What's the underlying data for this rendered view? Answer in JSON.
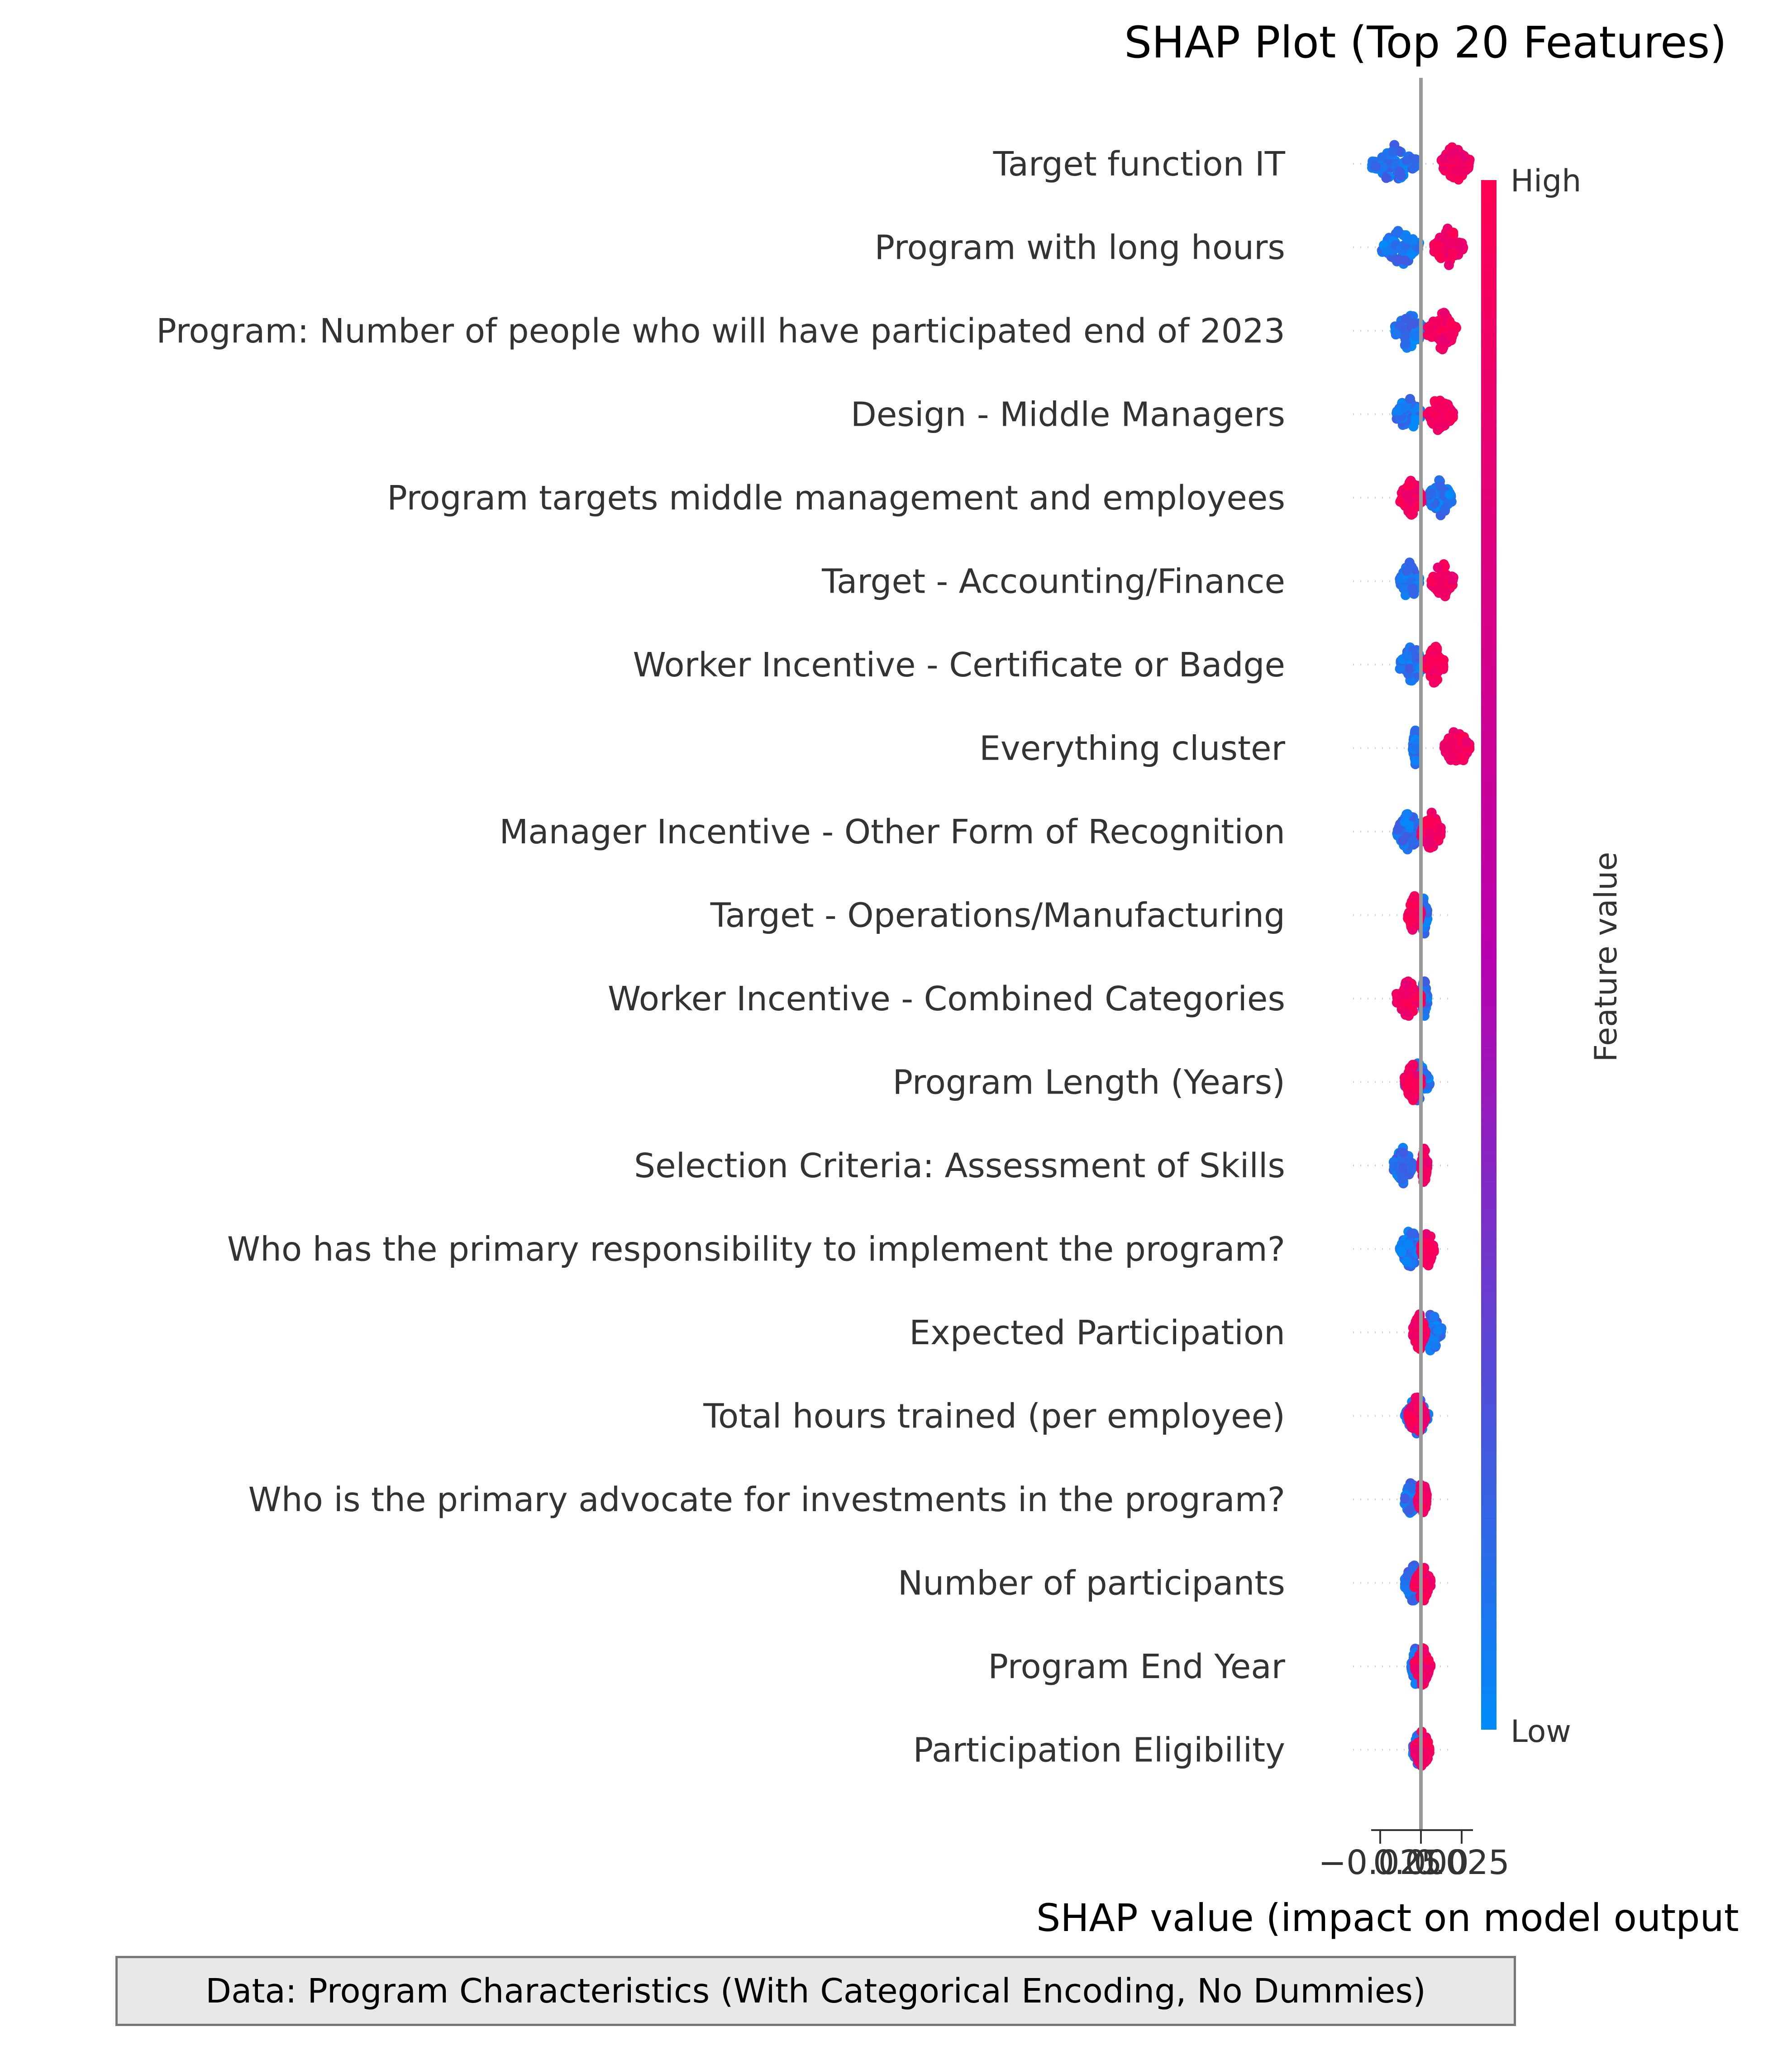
{
  "chart_data": {
    "type": "scatter",
    "subtype": "shap-beeswarm",
    "title": "SHAP Plot (Top 20 Features)",
    "xlabel": "SHAP value (impact on model output",
    "xlim": [
      -0.04,
      0.04
    ],
    "x_ticks": [
      "−0.025",
      "0.000",
      "0.025"
    ],
    "features": [
      {
        "name": "Target function IT",
        "low_range": [
          -0.03,
          -0.002
        ],
        "high_range": [
          0.012,
          0.03
        ]
      },
      {
        "name": "Program with long hours",
        "low_range": [
          -0.024,
          -0.001
        ],
        "high_range": [
          0.008,
          0.026
        ]
      },
      {
        "name": "Program: Number of people who will have participated end of 2023",
        "low_range": [
          -0.016,
          0.002
        ],
        "high_range": [
          0.004,
          0.022
        ]
      },
      {
        "name": "Design - Middle Managers",
        "low_range": [
          -0.015,
          0.0
        ],
        "high_range": [
          0.004,
          0.02
        ]
      },
      {
        "name": "Program targets middle management and employees",
        "low_range": [
          0.004,
          0.019
        ],
        "high_range": [
          -0.013,
          0.001
        ]
      },
      {
        "name": "Target - Accounting/Finance",
        "low_range": [
          -0.013,
          -0.001
        ],
        "high_range": [
          0.006,
          0.02
        ]
      },
      {
        "name": "Worker Incentive - Certificate or Badge",
        "low_range": [
          -0.013,
          0.002
        ],
        "high_range": [
          0.003,
          0.014
        ]
      },
      {
        "name": "Everything cluster",
        "low_range": [
          -0.005,
          -0.002
        ],
        "high_range": [
          0.014,
          0.03
        ]
      },
      {
        "name": "Manager Incentive - Other Form of Recognition",
        "low_range": [
          -0.015,
          0.0
        ],
        "high_range": [
          0.0,
          0.013
        ]
      },
      {
        "name": "Target - Operations/Manufacturing",
        "low_range": [
          0.0,
          0.004
        ],
        "high_range": [
          -0.008,
          0.0
        ]
      },
      {
        "name": "Worker Incentive - Combined Categories",
        "low_range": [
          0.0,
          0.004
        ],
        "high_range": [
          -0.015,
          0.0
        ]
      },
      {
        "name": "Program Length (Years)",
        "low_range": [
          -0.01,
          0.006
        ],
        "high_range": [
          -0.01,
          0.0
        ]
      },
      {
        "name": "Selection Criteria: Assessment of Skills",
        "low_range": [
          -0.017,
          -0.005
        ],
        "high_range": [
          0.0,
          0.004
        ]
      },
      {
        "name": "Who has the primary responsibility to implement the program?",
        "low_range": [
          -0.013,
          0.0
        ],
        "high_range": [
          0.0,
          0.008
        ]
      },
      {
        "name": "Expected Participation",
        "low_range": [
          0.0,
          0.013
        ],
        "high_range": [
          -0.005,
          0.003
        ]
      },
      {
        "name": "Total hours trained (per employee)",
        "low_range": [
          -0.01,
          0.005
        ],
        "high_range": [
          -0.008,
          0.003
        ]
      },
      {
        "name": "Who is the primary advocate for investments in the program?",
        "low_range": [
          -0.01,
          -0.002
        ],
        "high_range": [
          -0.002,
          0.004
        ]
      },
      {
        "name": "Number of participants",
        "low_range": [
          -0.01,
          0.0
        ],
        "high_range": [
          -0.004,
          0.006
        ]
      },
      {
        "name": "Program End Year",
        "low_range": [
          -0.006,
          0.0
        ],
        "high_range": [
          -0.004,
          0.006
        ]
      },
      {
        "name": "Participation Eligibility",
        "low_range": [
          -0.005,
          0.002
        ],
        "high_range": [
          -0.004,
          0.006
        ]
      }
    ],
    "colorbar": {
      "label": "Feature value",
      "high_label": "High",
      "low_label": "Low",
      "high_color": "#ff0052",
      "low_color": "#008bfb",
      "mid_color": "#b900ae"
    },
    "grid": false,
    "legend": "colorbar-right"
  },
  "caption": "Data: Program Characteristics (With Categorical Encoding, No Dummies)"
}
